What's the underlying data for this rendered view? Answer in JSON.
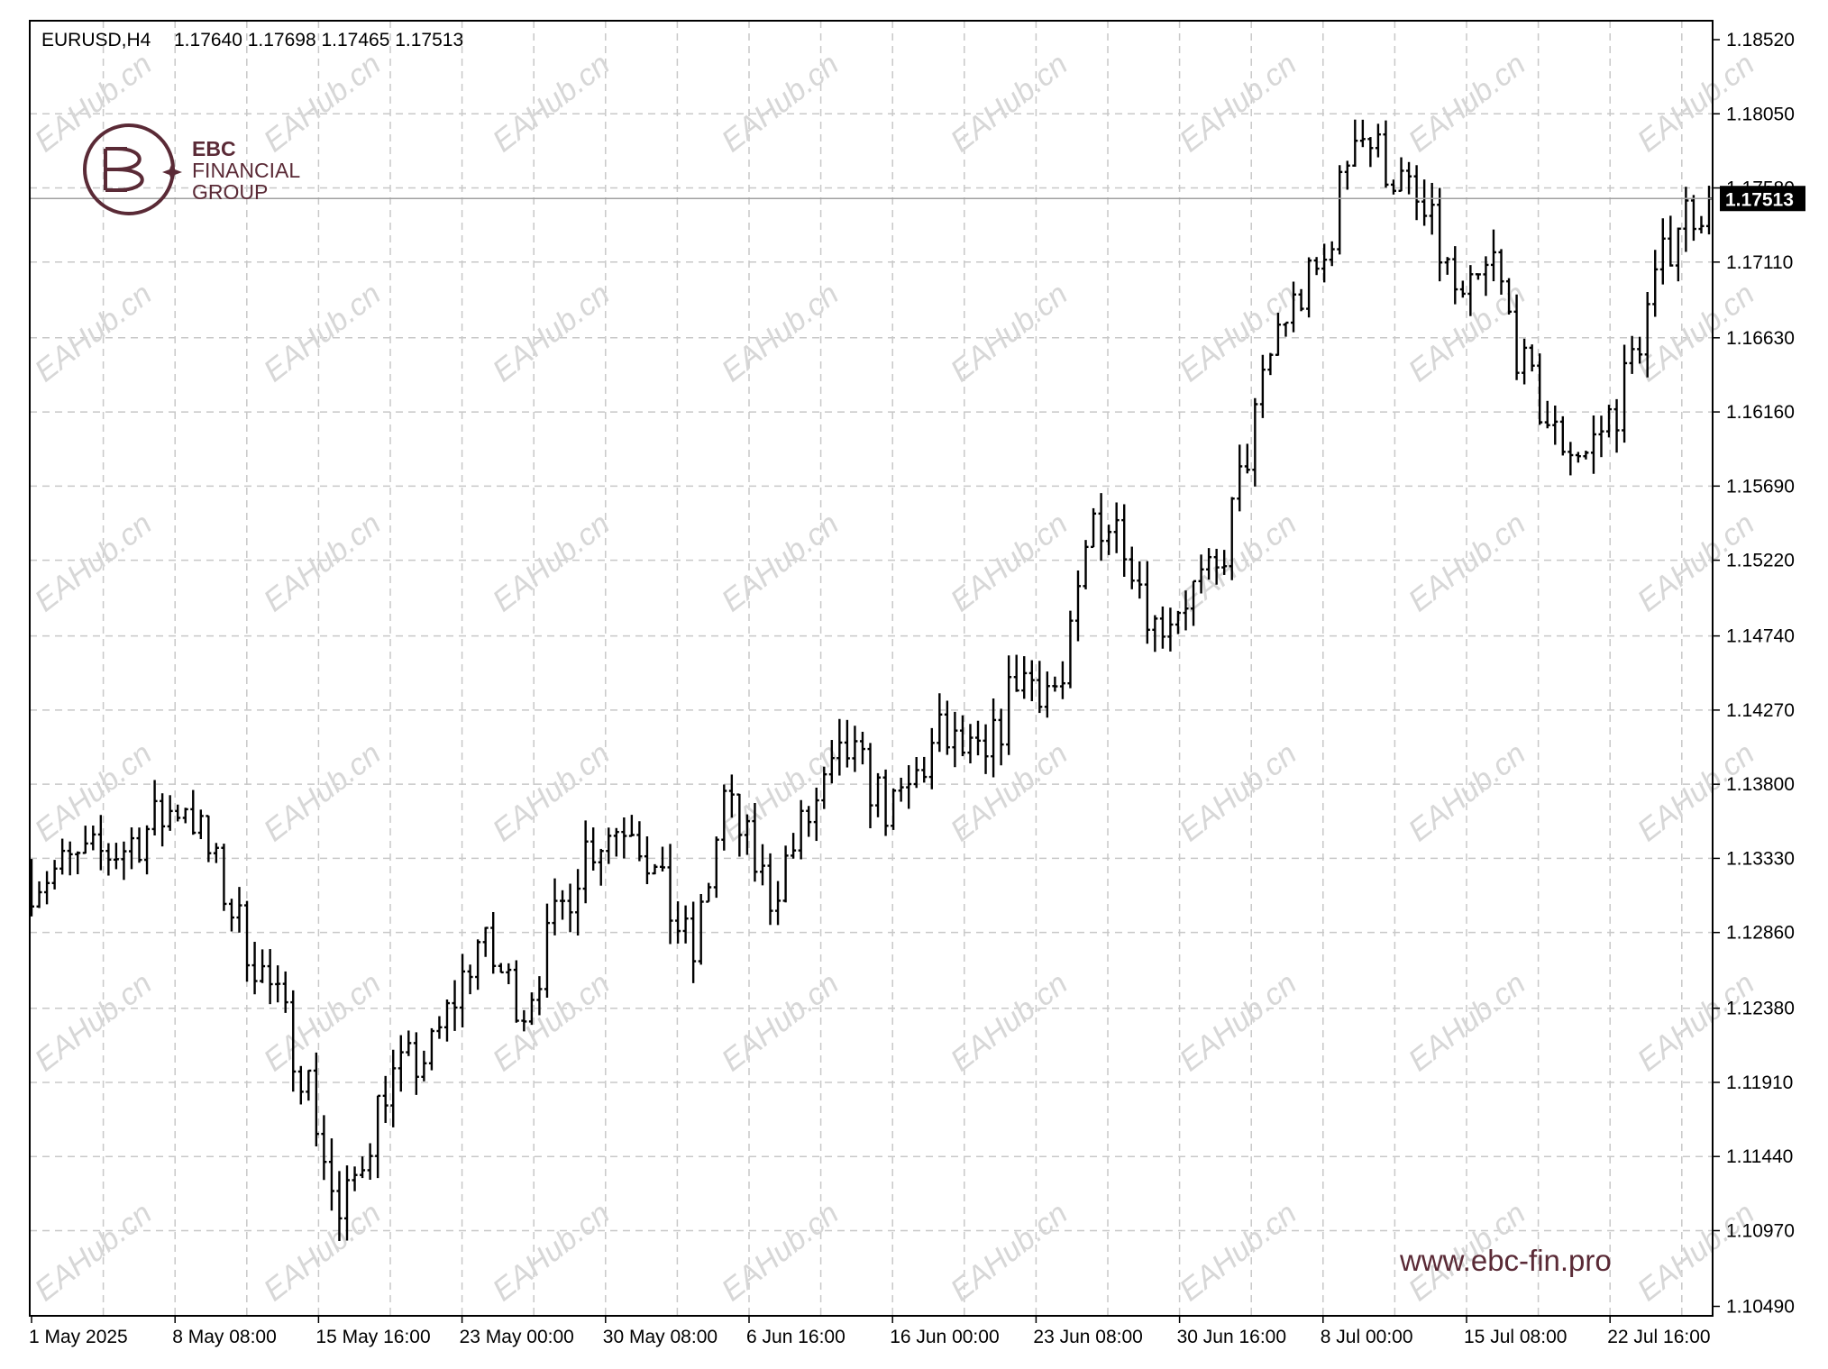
{
  "header": {
    "symbol_timeframe": "EURUSD,H4",
    "ohlc": "1.17640 1.17698 1.17465 1.17513"
  },
  "current_price_label": "1.17513",
  "logo": {
    "line1": "EBC",
    "line2": "FINANCIAL",
    "line3": "GROUP"
  },
  "website": "www.ebc-fin.pro",
  "watermark_text": "EAHub.cn",
  "colors": {
    "background": "#ffffff",
    "bars": "#000000",
    "grid": "#c8c8c8",
    "brand": "#5a2a36",
    "price_label_bg": "#000000"
  },
  "chart_data": {
    "type": "ohlc-bar",
    "symbol": "EURUSD",
    "timeframe": "H4",
    "grid": true,
    "y_ticks": [
      1.1852,
      1.1805,
      1.1758,
      1.1711,
      1.1663,
      1.1616,
      1.1569,
      1.1522,
      1.1474,
      1.1427,
      1.138,
      1.1333,
      1.1286,
      1.1238,
      1.1191,
      1.1144,
      1.1097,
      1.1049
    ],
    "y_tick_labels": [
      "1.18520",
      "1.18050",
      "1.17580",
      "1.17110",
      "1.16630",
      "1.16160",
      "1.15690",
      "1.15220",
      "1.14740",
      "1.14270",
      "1.13800",
      "1.13330",
      "1.12860",
      "1.12380",
      "1.11910",
      "1.11440",
      "1.10970",
      "1.10490"
    ],
    "ylim": [
      1.1043,
      1.1864
    ],
    "current_price": 1.17513,
    "x_tick_labels": [
      "1 May 2025",
      "8 May 08:00",
      "15 May 16:00",
      "23 May 00:00",
      "30 May 08:00",
      "6 Jun 16:00",
      "16 Jun 00:00",
      "23 Jun 08:00",
      "30 Jun 16:00",
      "8 Jul 00:00",
      "15 Jul 08:00",
      "22 Jul 16:00"
    ],
    "price_path": [
      [
        0,
        1.132
      ],
      [
        12,
        1.134
      ],
      [
        20,
        1.137
      ],
      [
        27,
        1.129
      ],
      [
        32,
        1.124
      ],
      [
        36,
        1.119
      ],
      [
        40,
        1.11
      ],
      [
        46,
        1.119
      ],
      [
        52,
        1.121
      ],
      [
        58,
        1.128
      ],
      [
        64,
        1.124
      ],
      [
        72,
        1.134
      ],
      [
        78,
        1.136
      ],
      [
        82,
        1.131
      ],
      [
        86,
        1.127
      ],
      [
        90,
        1.137
      ],
      [
        96,
        1.131
      ],
      [
        100,
        1.135
      ],
      [
        106,
        1.14
      ],
      [
        112,
        1.136
      ],
      [
        118,
        1.141
      ],
      [
        124,
        1.139
      ],
      [
        128,
        1.145
      ],
      [
        134,
        1.144
      ],
      [
        138,
        1.155
      ],
      [
        142,
        1.154
      ],
      [
        146,
        1.148
      ],
      [
        150,
        1.15
      ],
      [
        154,
        1.151
      ],
      [
        158,
        1.159
      ],
      [
        162,
        1.167
      ],
      [
        168,
        1.171
      ],
      [
        172,
        1.18
      ],
      [
        178,
        1.176
      ],
      [
        182,
        1.173
      ],
      [
        186,
        1.168
      ],
      [
        190,
        1.171
      ],
      [
        194,
        1.164
      ],
      [
        198,
        1.16
      ],
      [
        202,
        1.159
      ],
      [
        206,
        1.162
      ],
      [
        210,
        1.168
      ],
      [
        214,
        1.174
      ],
      [
        218,
        1.1751
      ]
    ]
  }
}
